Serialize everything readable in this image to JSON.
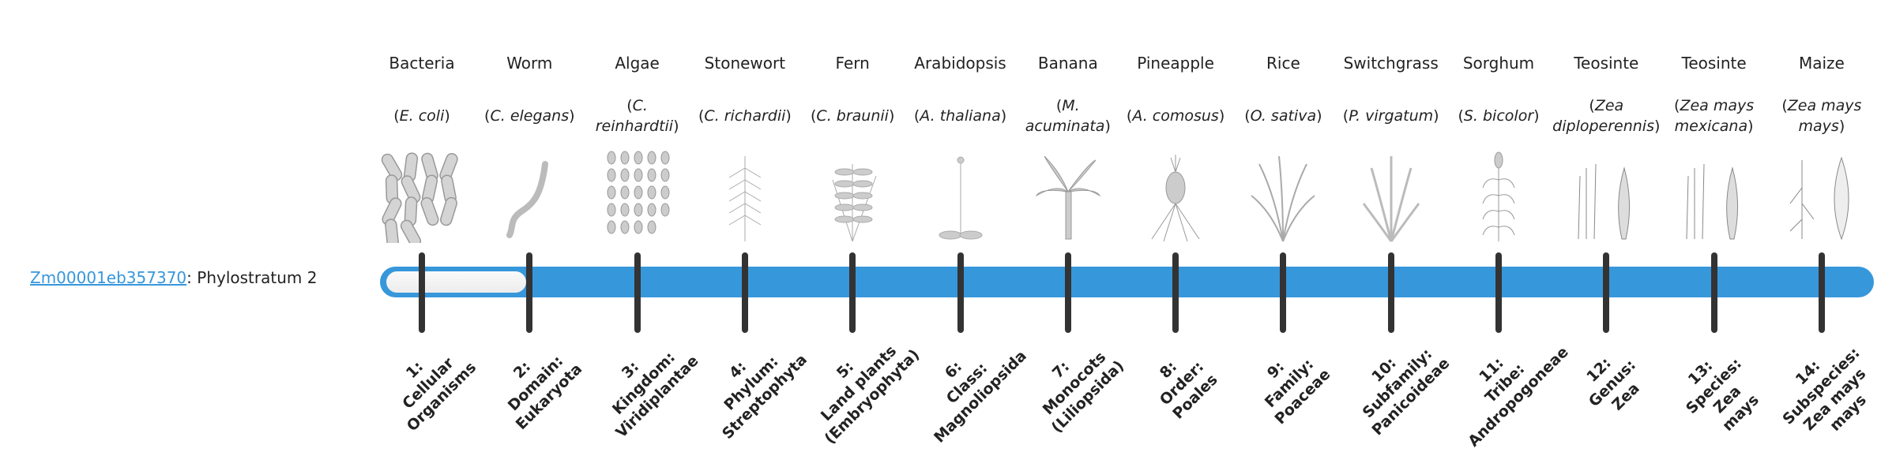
{
  "gene": {
    "id_link": "Zm00001eb357370",
    "suffix": ": Phylostratum 2"
  },
  "bar": {
    "color": "#3797DB",
    "phylostratum": 2,
    "total_strata": 14
  },
  "organisms": [
    {
      "common": "Bacteria",
      "scientific": "E. coli",
      "icon": "bacteria-icon"
    },
    {
      "common": "Worm",
      "scientific": "C. elegans",
      "icon": "worm-icon"
    },
    {
      "common": "Algae",
      "scientific": "C. reinhardtii",
      "icon": "algae-icon"
    },
    {
      "common": "Stonewort",
      "scientific": "C. richardii",
      "icon": "stonewort-icon"
    },
    {
      "common": "Fern",
      "scientific": "C. braunii",
      "icon": "fern-icon"
    },
    {
      "common": "Arabidopsis",
      "scientific": "A. thaliana",
      "icon": "arabidopsis-icon"
    },
    {
      "common": "Banana",
      "scientific": "M. acuminata",
      "icon": "banana-icon"
    },
    {
      "common": "Pineapple",
      "scientific": "A. comosus",
      "icon": "pineapple-icon"
    },
    {
      "common": "Rice",
      "scientific": "O. sativa",
      "icon": "rice-icon"
    },
    {
      "common": "Switchgrass",
      "scientific": "P. virgatum",
      "icon": "switchgrass-icon"
    },
    {
      "common": "Sorghum",
      "scientific": "S. bicolor",
      "icon": "sorghum-icon"
    },
    {
      "common": "Teosinte",
      "scientific": "Zea diploperennis",
      "icon": "teosinte-icon"
    },
    {
      "common": "Teosinte",
      "scientific": "Zea mays mexicana",
      "icon": "teosinte-icon"
    },
    {
      "common": "Maize",
      "scientific": "Zea mays mays",
      "icon": "maize-icon"
    }
  ],
  "strata": [
    "1:\nCellular\nOrganisms",
    "2:\nDomain:\nEukaryota",
    "3:\nKingdom:\nViridiplantae",
    "4:\nPhylum:\nStreptophyta",
    "5:\nLand plants\n(Embryophyta)",
    "6:\nClass:\nMagnoliopsida",
    "7:\nMonocots\n(Liliopsida)",
    "8:\nOrder:\nPoales",
    "9:\nFamily:\nPoaceae",
    "10:\nSubfamily:\nPanicoideae",
    "11:\nTribe:\nAndropogoneae",
    "12:\nGenus:\nZea",
    "13:\nSpecies:\nZea\nmays",
    "14:\nSubspecies:\nZea mays\nmays"
  ]
}
